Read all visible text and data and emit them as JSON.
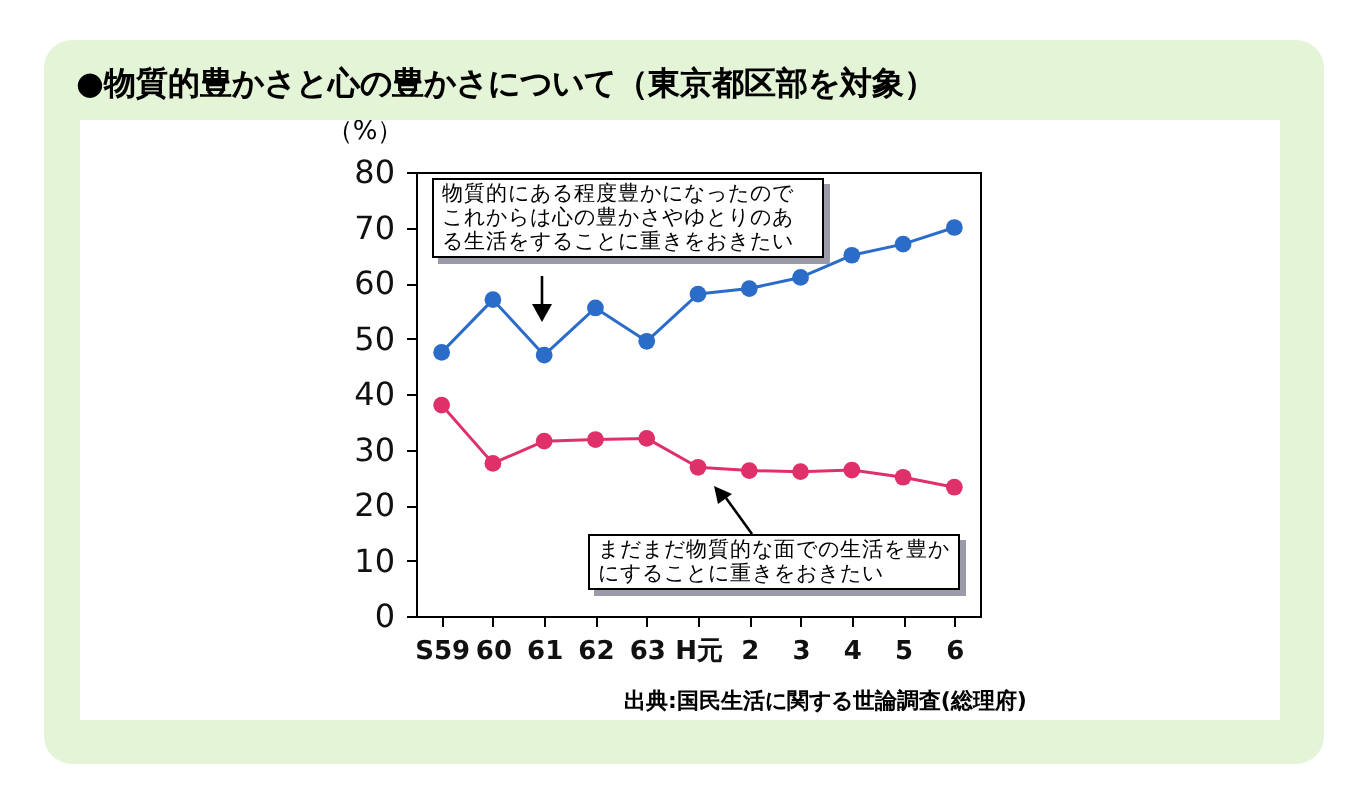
{
  "chart_data": {
    "type": "line",
    "title": "●物質的豊かさと心の豊かさについて（東京都区部を対象）",
    "ylabel": "（%）",
    "categories": [
      "S59",
      "60",
      "61",
      "62",
      "63",
      "H元",
      "2",
      "3",
      "4",
      "5",
      "6"
    ],
    "series": [
      {
        "name": "物質的にある程度豊かになったのでこれからは心の豊かさやゆとりのある生活をすることに重きをおきたい",
        "color": "#2a6cc8",
        "values": [
          47.5,
          57,
          47,
          55.5,
          49.5,
          58,
          59,
          61,
          65,
          67,
          70
        ]
      },
      {
        "name": "まだまだ物質的な面での生活を豊かにすることに重きをおきたい",
        "color": "#e0306a",
        "values": [
          38,
          27.5,
          31.5,
          31.8,
          32,
          26.8,
          26.2,
          26,
          26.3,
          25,
          23.2
        ]
      }
    ],
    "ylim": [
      0,
      80
    ],
    "yticks": [
      0,
      10,
      20,
      30,
      40,
      50,
      60,
      70,
      80
    ],
    "grid": false,
    "marker": "circle",
    "annotations": [
      "出典:国民生活に関する世論調査(総理府)"
    ]
  }
}
